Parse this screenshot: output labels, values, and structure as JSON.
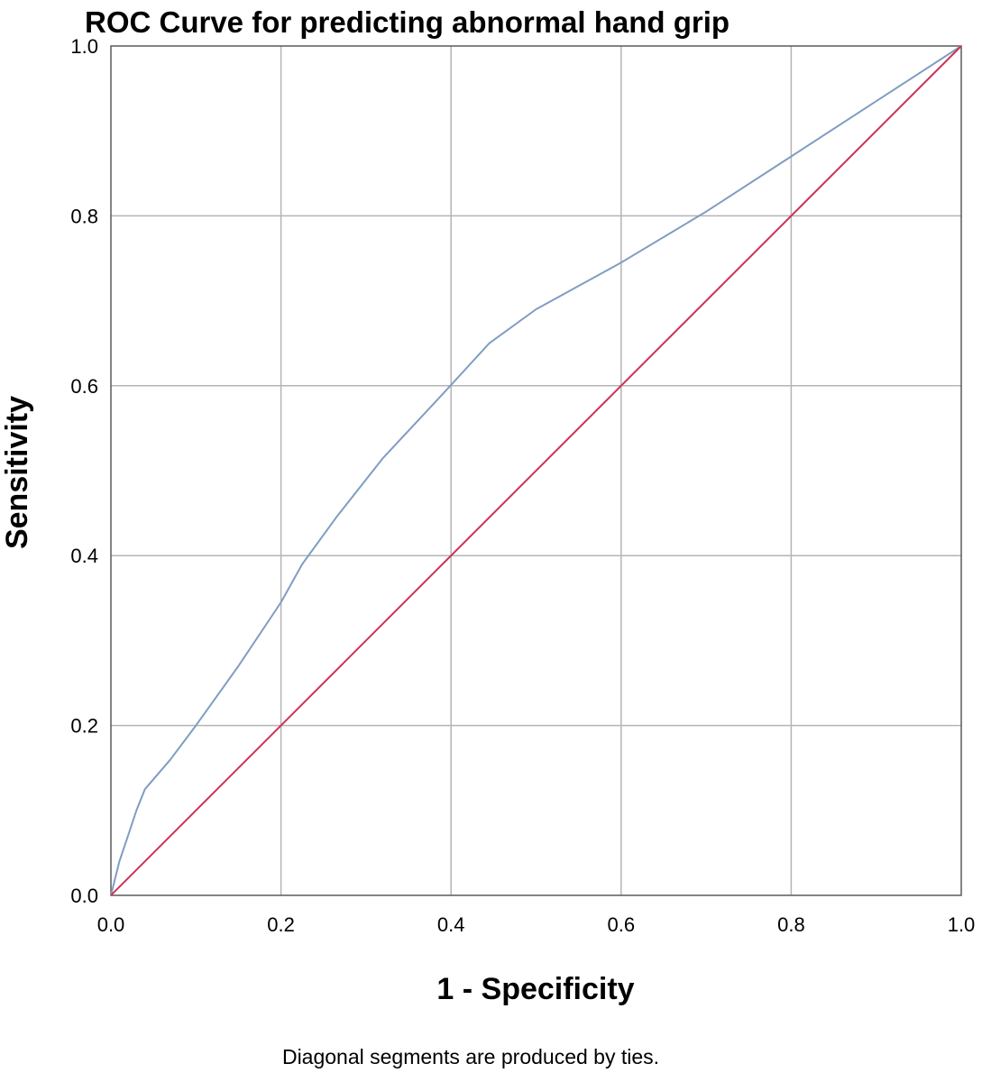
{
  "chart_data": {
    "type": "line",
    "title": "ROC Curve for predicting abnormal hand grip",
    "xlabel": "1 - Specificity",
    "ylabel": "Sensitivity",
    "footnote": "Diagonal segments are produced by ties.",
    "xlim": [
      0.0,
      1.0
    ],
    "ylim": [
      0.0,
      1.0
    ],
    "xticks": [
      "0.0",
      "0.2",
      "0.4",
      "0.6",
      "0.8",
      "1.0"
    ],
    "yticks": [
      "0.0",
      "0.2",
      "0.4",
      "0.6",
      "0.8",
      "1.0"
    ],
    "grid": true,
    "series": [
      {
        "color": "#7f9dc2",
        "x": [
          0.0,
          0.01,
          0.02,
          0.03,
          0.04,
          0.07,
          0.1,
          0.15,
          0.2,
          0.225,
          0.265,
          0.32,
          0.39,
          0.445,
          0.5,
          0.6,
          0.7,
          0.8,
          0.9,
          1.0
        ],
        "y": [
          0.0,
          0.04,
          0.07,
          0.1,
          0.125,
          0.16,
          0.2,
          0.27,
          0.345,
          0.39,
          0.445,
          0.515,
          0.59,
          0.65,
          0.69,
          0.745,
          0.805,
          0.87,
          0.935,
          1.0
        ]
      },
      {
        "color": "#cc3355",
        "x": [
          0.0,
          1.0
        ],
        "y": [
          0.0,
          1.0
        ]
      }
    ]
  }
}
